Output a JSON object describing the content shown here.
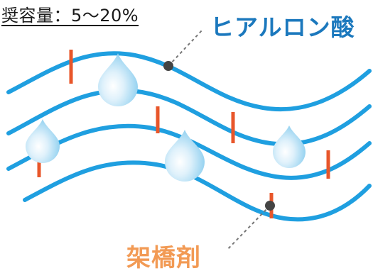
{
  "caption": "奨容量：5〜20%",
  "labels": {
    "hyaluronic_acid": "ヒアルロン酸",
    "crosslinker": "架橋剤"
  },
  "colors": {
    "strand": "#1f9fe0",
    "crosslink": "#e8562a",
    "droplet": "#8fd0ef",
    "ha_label": "#1b78bd",
    "crosslinker_label": "#f29a54"
  },
  "icons": [
    "water-droplet-icon"
  ]
}
